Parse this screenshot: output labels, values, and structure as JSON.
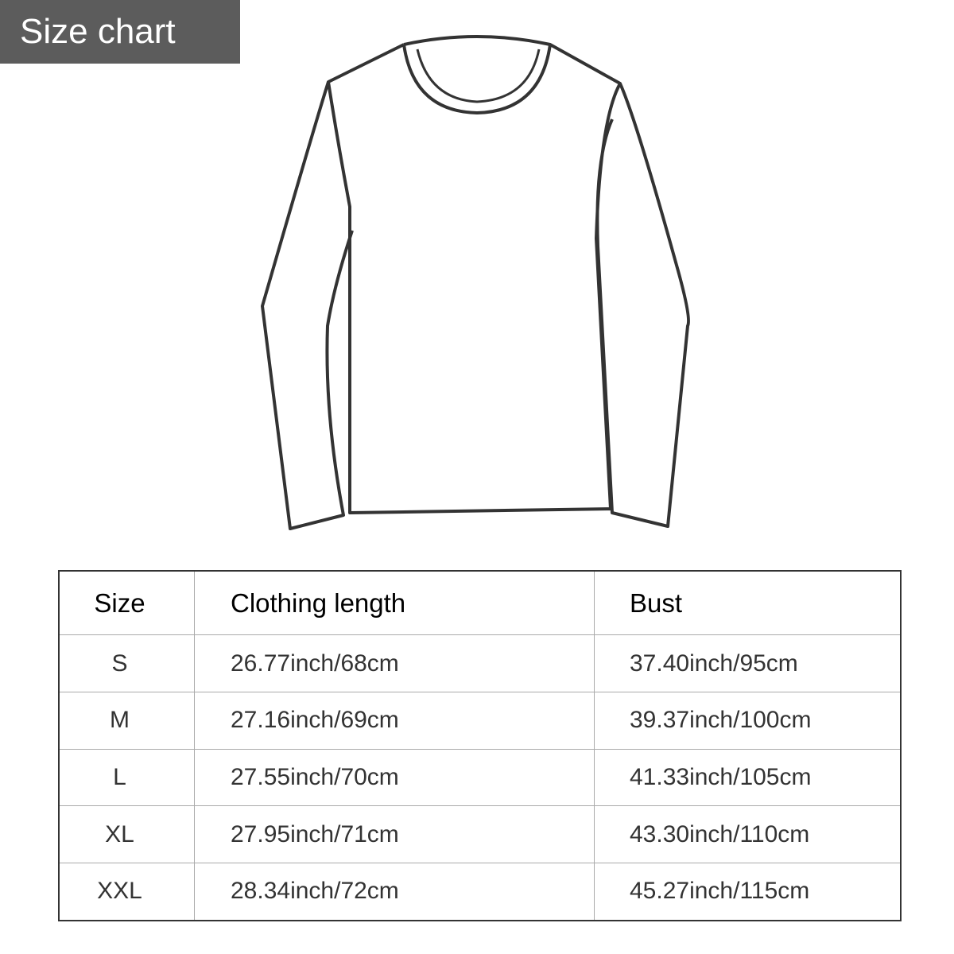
{
  "badge": {
    "label": "Size chart"
  },
  "illustration": {
    "icon": "long-sleeve-shirt-outline-icon"
  },
  "table": {
    "headers": [
      "Size",
      "Clothing length",
      "Bust"
    ],
    "rows": [
      [
        "S",
        "26.77inch/68cm",
        "37.40inch/95cm"
      ],
      [
        "M",
        "27.16inch/69cm",
        "39.37inch/100cm"
      ],
      [
        "L",
        "27.55inch/70cm",
        "41.33inch/105cm"
      ],
      [
        "XL",
        "27.95inch/71cm",
        "43.30inch/110cm"
      ],
      [
        "XXL",
        "28.34inch/72cm",
        "45.27inch/115cm"
      ]
    ]
  }
}
